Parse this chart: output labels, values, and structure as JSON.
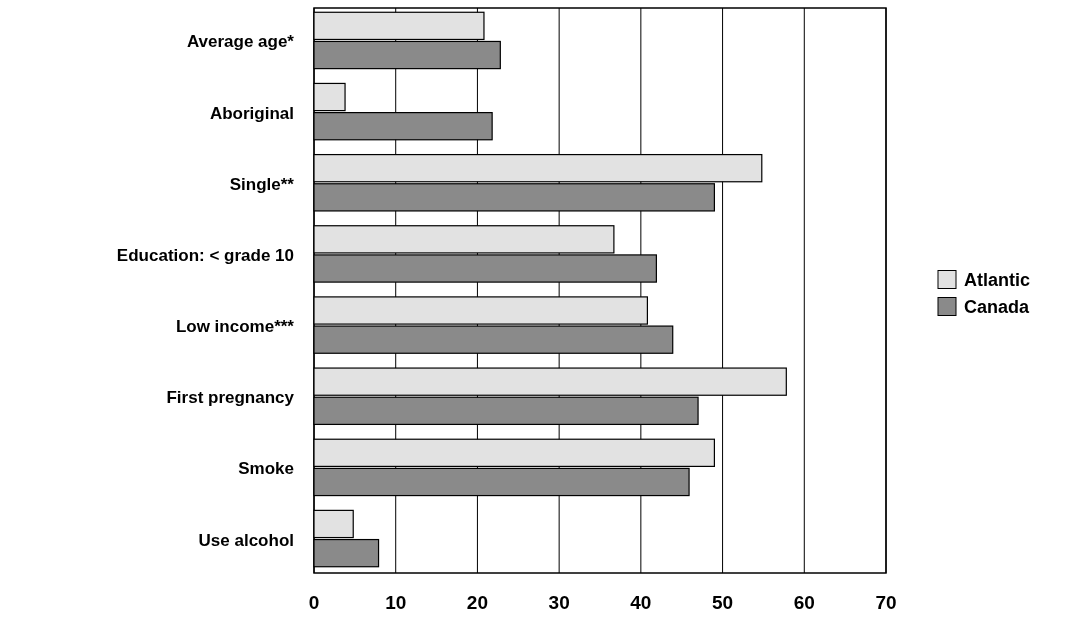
{
  "chart_data": {
    "type": "bar",
    "orientation": "horizontal",
    "categories": [
      "Average age*",
      "Aboriginal",
      "Single**",
      "Education: < grade 10",
      "Low income***",
      "First pregnancy",
      "Smoke",
      "Use alcohol"
    ],
    "series": [
      {
        "name": "Atlantic",
        "color": "#e2e2e2",
        "values": [
          20.8,
          3.8,
          54.8,
          36.7,
          40.8,
          57.8,
          49.0,
          4.8
        ]
      },
      {
        "name": "Canada",
        "color": "#8a8a8a",
        "values": [
          22.8,
          21.8,
          49.0,
          41.9,
          43.9,
          47.0,
          45.9,
          7.9
        ]
      }
    ],
    "xlim": [
      0,
      70
    ],
    "xticks": [
      0,
      10,
      20,
      30,
      40,
      50,
      60,
      70
    ],
    "grid": "x",
    "legend": "right"
  }
}
